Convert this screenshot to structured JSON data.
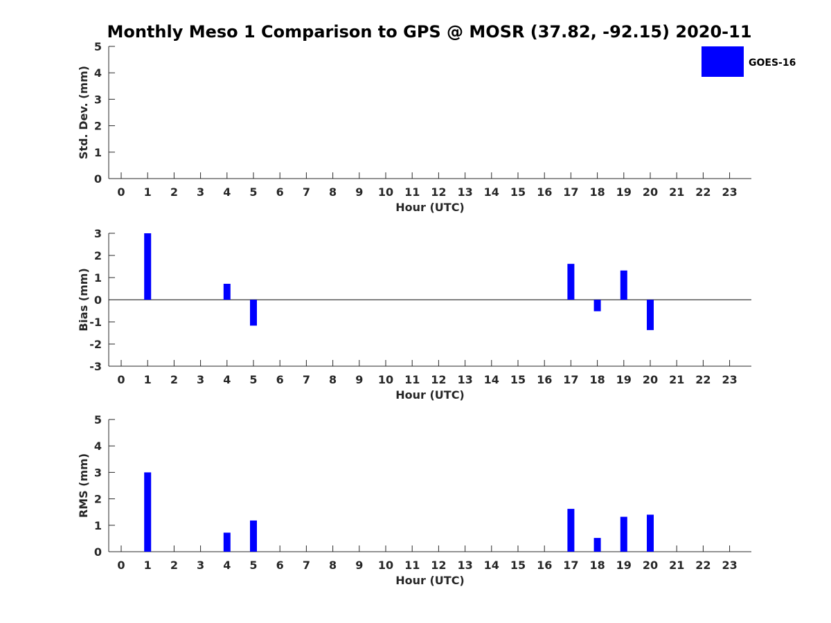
{
  "chart_data": [
    {
      "type": "bar",
      "title": "Monthly Meso 1 Comparison to GPS @ MOSR (37.82, -92.15) 2020-11",
      "xlabel": "Hour (UTC)",
      "ylabel": "Std. Dev. (mm)",
      "ylim": [
        0,
        5
      ],
      "yticks": [
        "0",
        "1",
        "2",
        "3",
        "4",
        "5"
      ],
      "x": [
        "0",
        "1",
        "2",
        "3",
        "4",
        "5",
        "6",
        "7",
        "8",
        "9",
        "10",
        "11",
        "12",
        "13",
        "14",
        "15",
        "16",
        "17",
        "18",
        "19",
        "20",
        "21",
        "22",
        "23"
      ],
      "legend": {
        "position": "top-right",
        "entries": [
          "GOES-16"
        ]
      },
      "series": [
        {
          "name": "GOES-16",
          "color": "#0000ff",
          "values": [
            null,
            null,
            null,
            null,
            null,
            null,
            null,
            null,
            null,
            null,
            null,
            null,
            null,
            null,
            null,
            null,
            null,
            null,
            null,
            null,
            null,
            null,
            null,
            null
          ]
        }
      ]
    },
    {
      "type": "bar",
      "xlabel": "Hour (UTC)",
      "ylabel": "Bias (mm)",
      "ylim": [
        -3,
        3
      ],
      "yticks": [
        "-3",
        "-2",
        "-1",
        "0",
        "1",
        "2",
        "3"
      ],
      "x": [
        "0",
        "1",
        "2",
        "3",
        "4",
        "5",
        "6",
        "7",
        "8",
        "9",
        "10",
        "11",
        "12",
        "13",
        "14",
        "15",
        "16",
        "17",
        "18",
        "19",
        "20",
        "21",
        "22",
        "23"
      ],
      "series": [
        {
          "name": "GOES-16",
          "color": "#0000ff",
          "values": [
            null,
            3.0,
            null,
            null,
            0.72,
            -1.17,
            null,
            null,
            null,
            null,
            null,
            null,
            null,
            null,
            null,
            null,
            null,
            1.62,
            -0.52,
            1.32,
            -1.37,
            null,
            null,
            null
          ]
        }
      ]
    },
    {
      "type": "bar",
      "xlabel": "Hour (UTC)",
      "ylabel": "RMS (mm)",
      "ylim": [
        0,
        5
      ],
      "yticks": [
        "0",
        "1",
        "2",
        "3",
        "4",
        "5"
      ],
      "x": [
        "0",
        "1",
        "2",
        "3",
        "4",
        "5",
        "6",
        "7",
        "8",
        "9",
        "10",
        "11",
        "12",
        "13",
        "14",
        "15",
        "16",
        "17",
        "18",
        "19",
        "20",
        "21",
        "22",
        "23"
      ],
      "series": [
        {
          "name": "GOES-16",
          "color": "#0000ff",
          "values": [
            null,
            3.0,
            null,
            null,
            0.72,
            1.18,
            null,
            null,
            null,
            null,
            null,
            null,
            null,
            null,
            null,
            null,
            null,
            1.62,
            0.52,
            1.32,
            1.4,
            null,
            null,
            null
          ]
        }
      ]
    }
  ]
}
